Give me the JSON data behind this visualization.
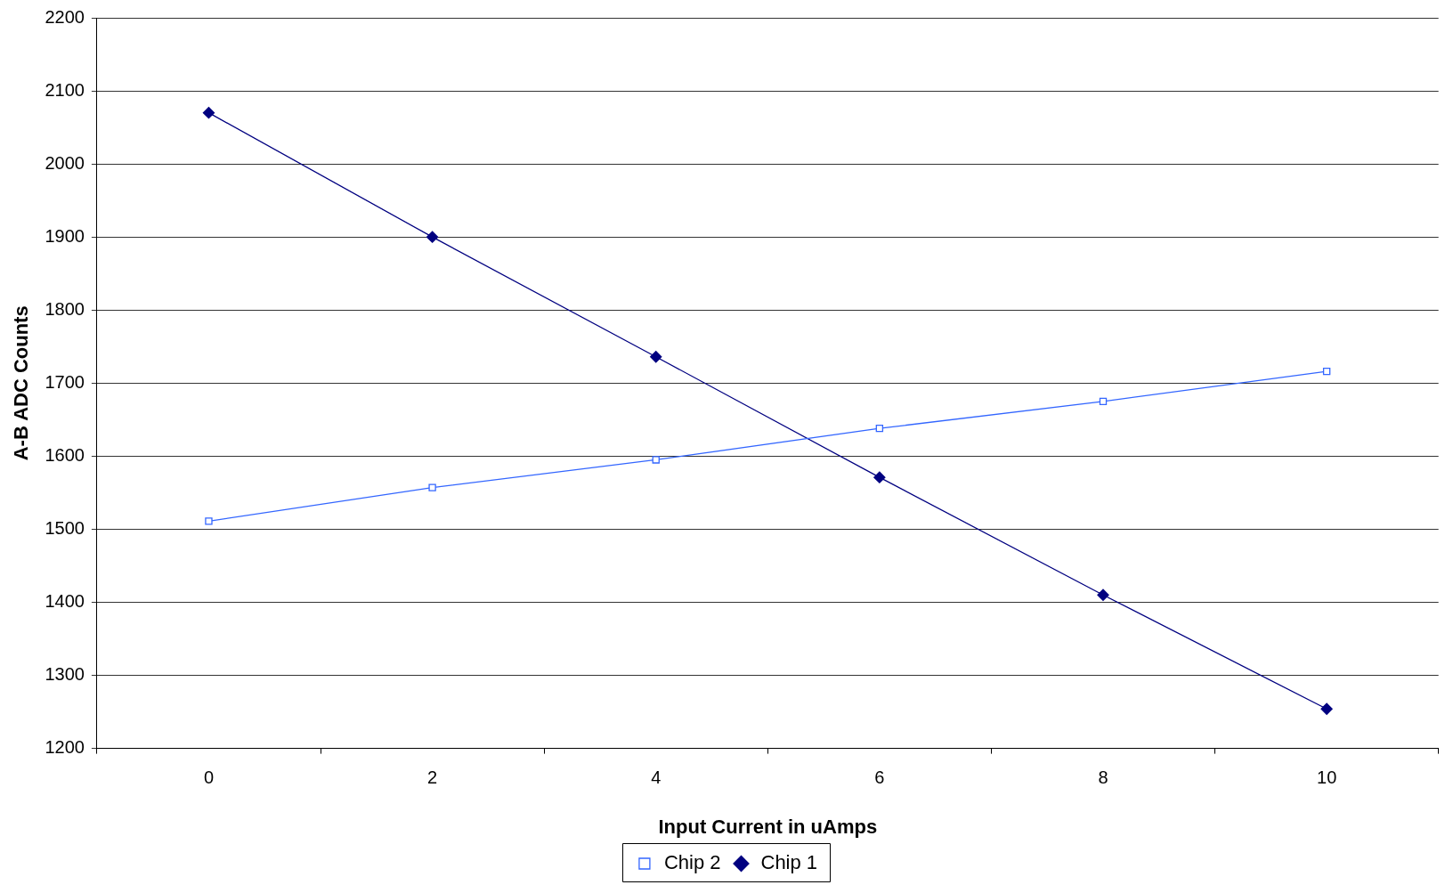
{
  "chart_data": {
    "type": "line",
    "xlabel": "Input Current in uAmps",
    "ylabel": "A-B ADC Counts",
    "categories": [
      "0",
      "2",
      "4",
      "6",
      "8",
      "10"
    ],
    "ylim": [
      1200,
      2200
    ],
    "yticks": [
      1200,
      1300,
      1400,
      1500,
      1600,
      1700,
      1800,
      1900,
      2000,
      2100,
      2200
    ],
    "grid": "y",
    "legend": "bottom",
    "series": [
      {
        "name": "Chip 2",
        "color": "#3366ff",
        "marker": "square",
        "values": [
          1511,
          1557,
          1595,
          1638,
          1675,
          1716
        ]
      },
      {
        "name": "Chip 1",
        "color": "#000080",
        "marker": "diamond",
        "values": [
          2070,
          1900,
          1736,
          1571,
          1410,
          1254
        ]
      }
    ]
  }
}
